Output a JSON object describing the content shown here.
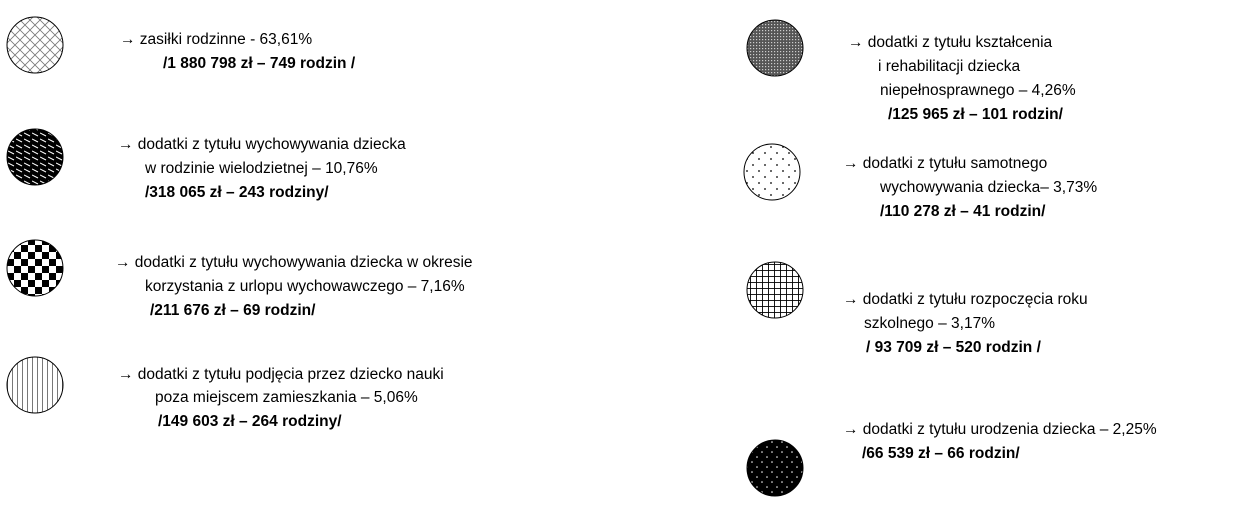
{
  "items": [
    {
      "lines": [
        "→ zasiłki rodzinne  - 63,61%"
      ],
      "amount": "/1 880 798 zł – 749 rodzin /"
    },
    {
      "lines": [
        "→ dodatki z tytułu wychowywania dziecka",
        "w rodzinie wielodzietnej – 10,76%"
      ],
      "amount": "/318 065 zł – 243 rodziny/"
    },
    {
      "lines": [
        "→ dodatki z tytułu wychowywania dziecka w okresie",
        "korzystania z urlopu wychowawczego – 7,16%"
      ],
      "amount": "/211 676 zł – 69 rodzin/"
    },
    {
      "lines": [
        "→ dodatki z tytułu podjęcia przez dziecko nauki",
        "poza miejscem zamieszkania – 5,06%"
      ],
      "amount": "/149 603 zł –  264 rodziny/"
    },
    {
      "lines": [
        "→ dodatki z tytułu kształcenia",
        "i rehabilitacji dziecka",
        "niepełnosprawnego – 4,26%"
      ],
      "amount": "/125 965 zł – 101 rodzin/"
    },
    {
      "lines": [
        "→ dodatki z tytułu samotnego",
        "wychowywania dziecka– 3,73%"
      ],
      "amount": "/110 278  zł – 41 rodzin/"
    },
    {
      "lines": [
        "→ dodatki z tytułu rozpoczęcia roku",
        "szkolnego – 3,17%"
      ],
      "amount": "/ 93 709 zł – 520 rodzin /"
    },
    {
      "lines": [
        "→ dodatki z tytułu urodzenia dziecka – 2,25%"
      ],
      "amount": "/66 539 zł – 66 rodzin/"
    }
  ]
}
